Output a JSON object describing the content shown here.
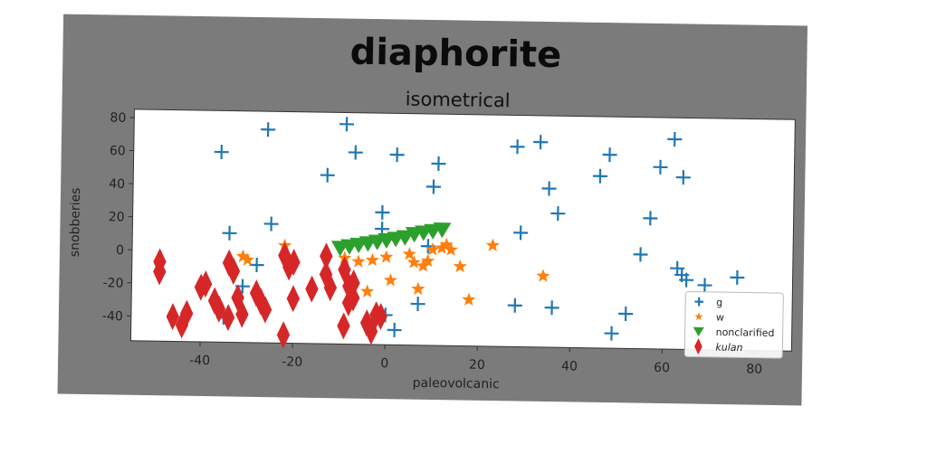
{
  "chart_data": {
    "type": "scatter",
    "title": "diaphorite",
    "subtitle": "isometrical",
    "xlabel": "paleovolcanic",
    "ylabel": "snobberies",
    "xlim": [
      -55,
      88
    ],
    "ylim": [
      -55,
      85
    ],
    "x_ticks": [
      -40,
      -20,
      0,
      20,
      40,
      60,
      80
    ],
    "y_ticks": [
      -40,
      -20,
      0,
      20,
      40,
      60,
      80
    ],
    "grid": false,
    "legend_position": "lower-right",
    "series": [
      {
        "name": "g",
        "marker": "plus",
        "color": "#1f77b4",
        "points": [
          [
            -36,
            60
          ],
          [
            -26,
            74
          ],
          [
            -13,
            47
          ],
          [
            -9,
            78
          ],
          [
            -7,
            61
          ],
          [
            2,
            60
          ],
          [
            11,
            55
          ],
          [
            10,
            41
          ],
          [
            -1,
            25
          ],
          [
            -1,
            15
          ],
          [
            -25,
            17
          ],
          [
            -34,
            11
          ],
          [
            -28,
            -8
          ],
          [
            -31,
            -21
          ],
          [
            -35,
            -40
          ],
          [
            0,
            -37
          ],
          [
            2,
            -46
          ],
          [
            7,
            -30
          ],
          [
            9,
            5
          ],
          [
            28,
            66
          ],
          [
            33,
            69
          ],
          [
            35,
            41
          ],
          [
            37,
            26
          ],
          [
            29,
            14
          ],
          [
            28,
            -30
          ],
          [
            36,
            -31
          ],
          [
            46,
            49
          ],
          [
            48,
            62
          ],
          [
            55,
            2
          ],
          [
            57,
            24
          ],
          [
            59,
            55
          ],
          [
            62,
            72
          ],
          [
            64,
            49
          ],
          [
            63,
            -6
          ],
          [
            64,
            -10
          ],
          [
            65,
            -13
          ],
          [
            69,
            -16
          ],
          [
            76,
            -11
          ],
          [
            52,
            -34
          ],
          [
            49,
            -46
          ]
        ]
      },
      {
        "name": "w",
        "marker": "star",
        "color": "#ff7f0e",
        "points": [
          [
            -31,
            -3
          ],
          [
            -30,
            -5
          ],
          [
            -22,
            4
          ],
          [
            -9,
            -3
          ],
          [
            -6,
            -5
          ],
          [
            -3,
            -4
          ],
          [
            0,
            -2
          ],
          [
            -4,
            -23
          ],
          [
            1,
            -16
          ],
          [
            5,
            0
          ],
          [
            6,
            -5
          ],
          [
            8,
            -7
          ],
          [
            9,
            -4
          ],
          [
            10,
            3
          ],
          [
            12,
            4
          ],
          [
            13,
            6
          ],
          [
            14,
            3
          ],
          [
            16,
            -7
          ],
          [
            18,
            -27
          ],
          [
            23,
            6
          ],
          [
            34,
            -12
          ],
          [
            7,
            -21
          ]
        ]
      },
      {
        "name": "nonclarified",
        "marker": "triangle-down",
        "color": "#2ca02c",
        "points": [
          [
            -10,
            3
          ],
          [
            -8,
            4
          ],
          [
            -6,
            5
          ],
          [
            -4,
            6
          ],
          [
            -2,
            7
          ],
          [
            0,
            8
          ],
          [
            2,
            9
          ],
          [
            4,
            10
          ],
          [
            6,
            12
          ],
          [
            8,
            13
          ],
          [
            10,
            14
          ],
          [
            12,
            15
          ]
        ]
      },
      {
        "name": "kulan",
        "marker": "thin-diamond",
        "color": "#d62728",
        "points": [
          [
            -49,
            -7
          ],
          [
            -49,
            -13
          ],
          [
            -46,
            -40
          ],
          [
            -44,
            -45
          ],
          [
            -43,
            -38
          ],
          [
            -40,
            -22
          ],
          [
            -39,
            -20
          ],
          [
            -37,
            -30
          ],
          [
            -36,
            -35
          ],
          [
            -34,
            -7
          ],
          [
            -33,
            -12
          ],
          [
            -34,
            -40
          ],
          [
            -32,
            -28
          ],
          [
            -31,
            -38
          ],
          [
            -28,
            -25
          ],
          [
            -27,
            -30
          ],
          [
            -26,
            -35
          ],
          [
            -22,
            -2
          ],
          [
            -21,
            -9
          ],
          [
            -22,
            -50
          ],
          [
            -20,
            -6
          ],
          [
            -20,
            -28
          ],
          [
            -16,
            -22
          ],
          [
            -13,
            -2
          ],
          [
            -13,
            -13
          ],
          [
            -12,
            -21
          ],
          [
            -9,
            -10
          ],
          [
            -8,
            -20
          ],
          [
            -8,
            -30
          ],
          [
            -9,
            -44
          ],
          [
            -7,
            -18
          ],
          [
            -7,
            -27
          ],
          [
            -4,
            -42
          ],
          [
            -3,
            -47
          ],
          [
            -2,
            -37
          ],
          [
            -1,
            -38
          ]
        ]
      }
    ]
  }
}
